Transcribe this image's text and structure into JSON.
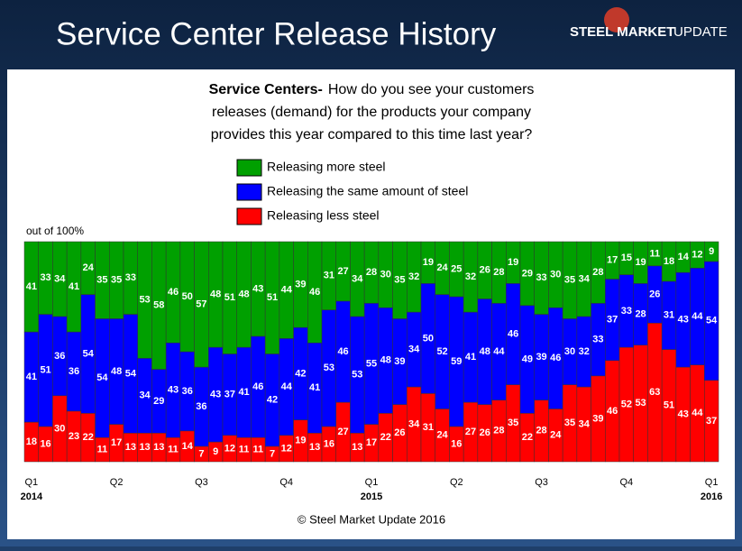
{
  "header": {
    "title": "Service Center Release History",
    "logo_bold": "STEEL MARKET",
    "logo": "UPDATE"
  },
  "chart_data": {
    "type": "stacked_bar",
    "subtitle_lead": "Service Centers-",
    "subtitle": [
      "How do you  see your customers",
      "releases (demand) for the products your company",
      "provides this year compared to this time last year?"
    ],
    "y_label": "out of 100%",
    "ylim": [
      0,
      100
    ],
    "categories": [
      "Q1",
      null,
      null,
      null,
      null,
      null,
      "Q2",
      null,
      null,
      null,
      null,
      null,
      "Q3",
      null,
      null,
      null,
      null,
      null,
      "Q4",
      null,
      null,
      null,
      null,
      null,
      "Q1",
      null,
      null,
      null,
      null,
      null,
      "Q2",
      null,
      null,
      null,
      null,
      null,
      "Q3",
      null,
      null,
      null,
      null,
      null,
      "Q4",
      null,
      null,
      null,
      null,
      null,
      "Q1"
    ],
    "year_labels": [
      "2014",
      null,
      null,
      null,
      null,
      null,
      null,
      null,
      null,
      null,
      null,
      null,
      null,
      null,
      null,
      null,
      null,
      null,
      null,
      null,
      null,
      null,
      null,
      null,
      "2015",
      null,
      null,
      null,
      null,
      null,
      null,
      null,
      null,
      null,
      null,
      null,
      null,
      null,
      null,
      null,
      null,
      null,
      null,
      null,
      null,
      null,
      null,
      null,
      "2016"
    ],
    "series": [
      {
        "name": "Releasing less steel",
        "color": "#ff0000",
        "values": [
          18,
          16,
          30,
          23,
          22,
          11,
          17,
          13,
          13,
          13,
          11,
          14,
          7,
          9,
          12,
          11,
          11,
          7,
          12,
          19,
          13,
          16,
          27,
          13,
          17,
          22,
          26,
          34,
          31,
          24,
          16,
          27,
          26,
          28,
          35,
          22,
          28,
          24,
          35,
          34,
          39,
          46,
          52,
          53,
          63,
          51,
          43,
          44,
          37
        ]
      },
      {
        "name": "Releasing the same amount of steel",
        "color": "#0000ff",
        "values": [
          41,
          51,
          36,
          36,
          54,
          54,
          48,
          54,
          34,
          29,
          43,
          36,
          36,
          43,
          37,
          41,
          46,
          42,
          44,
          42,
          41,
          53,
          46,
          53,
          55,
          48,
          39,
          34,
          50,
          52,
          59,
          41,
          48,
          44,
          46,
          49,
          39,
          46,
          30,
          32,
          33,
          37,
          33,
          28,
          26,
          31,
          43,
          44,
          54
        ]
      },
      {
        "name": "Releasing more steel",
        "color": "#00a000",
        "values": [
          41,
          33,
          34,
          41,
          24,
          35,
          35,
          33,
          53,
          58,
          46,
          50,
          57,
          48,
          51,
          48,
          43,
          51,
          44,
          39,
          46,
          31,
          27,
          34,
          28,
          30,
          35,
          32,
          19,
          24,
          25,
          32,
          26,
          28,
          19,
          29,
          33,
          30,
          35,
          34,
          28,
          17,
          15,
          19,
          11,
          18,
          14,
          12,
          9
        ]
      }
    ],
    "footer": "© Steel Market Update 2016"
  }
}
